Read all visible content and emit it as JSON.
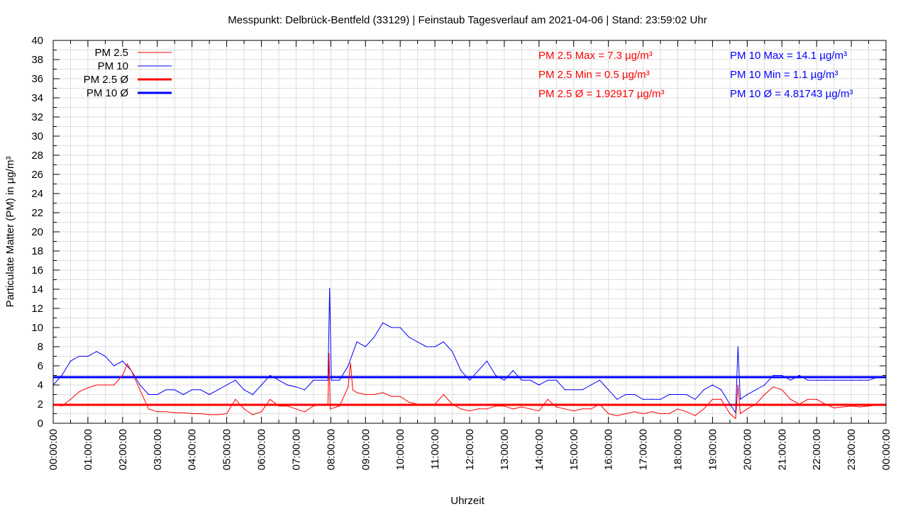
{
  "chart_data": {
    "type": "line",
    "title": "Messpunkt: Delbrück-Bentfeld (33129) | Feinstaub Tagesverlauf am 2021-04-06 | Stand: 23:59:02 Uhr",
    "xlabel": "Uhrzeit",
    "ylabel": "Particulate Matter (PM) in µg/m³",
    "ylim": [
      0,
      40
    ],
    "yticks": [
      "0",
      "2",
      "4",
      "6",
      "8",
      "10",
      "12",
      "14",
      "16",
      "18",
      "20",
      "22",
      "24",
      "26",
      "28",
      "30",
      "32",
      "34",
      "36",
      "38",
      "40"
    ],
    "xticks": [
      "00:00:00",
      "01:00:00",
      "02:00:00",
      "03:00:00",
      "04:00:00",
      "05:00:00",
      "06:00:00",
      "07:00:00",
      "08:00:00",
      "09:00:00",
      "10:00:00",
      "11:00:00",
      "12:00:00",
      "13:00:00",
      "14:00:00",
      "15:00:00",
      "16:00:00",
      "17:00:00",
      "18:00:00",
      "19:00:00",
      "20:00:00",
      "21:00:00",
      "22:00:00",
      "23:00:00",
      "00:00:00"
    ],
    "grid": true,
    "legend_position": "top-left",
    "legend": [
      "PM 2.5",
      "PM 10",
      "PM 2.5 Ø",
      "PM 10 Ø"
    ],
    "colors": {
      "pm25": "#ff0000",
      "pm10": "#0000ff"
    },
    "annotations": {
      "pm25": [
        "PM 2.5 Max = 7.3 µg/m³",
        "PM 2.5 Min = 0.5 µg/m³",
        "PM 2.5 Ø = 1.92917 µg/m³"
      ],
      "pm10": [
        "PM 10 Max = 14.1 µg/m³",
        "PM 10 Min = 1.1 µg/m³",
        "PM 10 Ø = 4.81743 µg/m³"
      ]
    },
    "series": [
      {
        "name": "PM 2.5",
        "points": [
          [
            "00:00",
            2.0
          ],
          [
            "00:15",
            1.8
          ],
          [
            "00:30",
            2.5
          ],
          [
            "00:45",
            3.3
          ],
          [
            "01:00",
            3.7
          ],
          [
            "01:15",
            4.0
          ],
          [
            "01:30",
            4.0
          ],
          [
            "01:45",
            4.0
          ],
          [
            "02:00",
            5.0
          ],
          [
            "02:08",
            6.2
          ],
          [
            "02:15",
            5.5
          ],
          [
            "02:30",
            3.5
          ],
          [
            "02:45",
            1.5
          ],
          [
            "03:00",
            1.2
          ],
          [
            "03:15",
            1.2
          ],
          [
            "03:30",
            1.1
          ],
          [
            "03:45",
            1.1
          ],
          [
            "04:00",
            1.0
          ],
          [
            "04:15",
            1.0
          ],
          [
            "04:30",
            0.9
          ],
          [
            "04:45",
            0.9
          ],
          [
            "05:00",
            1.0
          ],
          [
            "05:15",
            2.5
          ],
          [
            "05:30",
            1.5
          ],
          [
            "05:45",
            0.9
          ],
          [
            "06:00",
            1.2
          ],
          [
            "06:15",
            2.5
          ],
          [
            "06:30",
            1.8
          ],
          [
            "06:45",
            1.8
          ],
          [
            "07:00",
            1.5
          ],
          [
            "07:15",
            1.2
          ],
          [
            "07:30",
            1.8
          ],
          [
            "07:45",
            2.0
          ],
          [
            "07:55",
            2.0
          ],
          [
            "07:57",
            7.3
          ],
          [
            "07:59",
            1.5
          ],
          [
            "08:15",
            1.8
          ],
          [
            "08:30",
            3.8
          ],
          [
            "08:34",
            6.3
          ],
          [
            "08:38",
            3.5
          ],
          [
            "08:45",
            3.2
          ],
          [
            "09:00",
            3.0
          ],
          [
            "09:15",
            3.0
          ],
          [
            "09:30",
            3.2
          ],
          [
            "09:45",
            2.8
          ],
          [
            "10:00",
            2.8
          ],
          [
            "10:15",
            2.2
          ],
          [
            "10:30",
            2.0
          ],
          [
            "10:45",
            2.0
          ],
          [
            "11:00",
            2.0
          ],
          [
            "11:15",
            3.0
          ],
          [
            "11:30",
            2.0
          ],
          [
            "11:45",
            1.5
          ],
          [
            "12:00",
            1.3
          ],
          [
            "12:15",
            1.5
          ],
          [
            "12:30",
            1.5
          ],
          [
            "12:45",
            1.8
          ],
          [
            "13:00",
            1.8
          ],
          [
            "13:15",
            1.5
          ],
          [
            "13:30",
            1.7
          ],
          [
            "13:45",
            1.5
          ],
          [
            "14:00",
            1.3
          ],
          [
            "14:15",
            2.5
          ],
          [
            "14:30",
            1.7
          ],
          [
            "14:45",
            1.5
          ],
          [
            "15:00",
            1.3
          ],
          [
            "15:15",
            1.5
          ],
          [
            "15:30",
            1.5
          ],
          [
            "15:45",
            2.0
          ],
          [
            "16:00",
            1.0
          ],
          [
            "16:15",
            0.8
          ],
          [
            "16:30",
            1.0
          ],
          [
            "16:45",
            1.2
          ],
          [
            "17:00",
            1.0
          ],
          [
            "17:15",
            1.2
          ],
          [
            "17:30",
            1.0
          ],
          [
            "17:45",
            1.0
          ],
          [
            "18:00",
            1.5
          ],
          [
            "18:15",
            1.2
          ],
          [
            "18:30",
            0.8
          ],
          [
            "18:45",
            1.5
          ],
          [
            "19:00",
            2.5
          ],
          [
            "19:15",
            2.5
          ],
          [
            "19:30",
            1.0
          ],
          [
            "19:40",
            0.5
          ],
          [
            "19:44",
            4.0
          ],
          [
            "19:48",
            1.0
          ],
          [
            "20:00",
            1.5
          ],
          [
            "20:15",
            2.0
          ],
          [
            "20:30",
            3.0
          ],
          [
            "20:45",
            3.8
          ],
          [
            "21:00",
            3.5
          ],
          [
            "21:15",
            2.5
          ],
          [
            "21:30",
            2.0
          ],
          [
            "21:45",
            2.5
          ],
          [
            "22:00",
            2.5
          ],
          [
            "22:15",
            2.0
          ],
          [
            "22:30",
            1.6
          ],
          [
            "22:45",
            1.7
          ],
          [
            "23:00",
            1.8
          ],
          [
            "23:15",
            1.7
          ],
          [
            "23:30",
            1.8
          ],
          [
            "23:45",
            1.9
          ],
          [
            "24:00",
            2.0
          ]
        ]
      },
      {
        "name": "PM 10",
        "points": [
          [
            "00:00",
            4.0
          ],
          [
            "00:15",
            5.0
          ],
          [
            "00:30",
            6.5
          ],
          [
            "00:45",
            7.0
          ],
          [
            "01:00",
            7.0
          ],
          [
            "01:15",
            7.5
          ],
          [
            "01:30",
            7.0
          ],
          [
            "01:45",
            6.0
          ],
          [
            "02:00",
            6.5
          ],
          [
            "02:15",
            5.5
          ],
          [
            "02:30",
            4.0
          ],
          [
            "02:45",
            3.0
          ],
          [
            "03:00",
            3.0
          ],
          [
            "03:15",
            3.5
          ],
          [
            "03:30",
            3.5
          ],
          [
            "03:45",
            3.0
          ],
          [
            "04:00",
            3.5
          ],
          [
            "04:15",
            3.5
          ],
          [
            "04:30",
            3.0
          ],
          [
            "04:45",
            3.5
          ],
          [
            "05:00",
            4.0
          ],
          [
            "05:15",
            4.5
          ],
          [
            "05:30",
            3.5
          ],
          [
            "05:45",
            3.0
          ],
          [
            "06:00",
            4.0
          ],
          [
            "06:15",
            5.0
          ],
          [
            "06:30",
            4.5
          ],
          [
            "06:45",
            4.0
          ],
          [
            "07:00",
            3.8
          ],
          [
            "07:15",
            3.5
          ],
          [
            "07:30",
            4.5
          ],
          [
            "07:45",
            4.5
          ],
          [
            "07:55",
            4.5
          ],
          [
            "07:58",
            14.1
          ],
          [
            "08:01",
            4.5
          ],
          [
            "08:15",
            4.5
          ],
          [
            "08:30",
            6.0
          ],
          [
            "08:45",
            8.5
          ],
          [
            "09:00",
            8.0
          ],
          [
            "09:15",
            9.0
          ],
          [
            "09:30",
            10.5
          ],
          [
            "09:45",
            10.0
          ],
          [
            "10:00",
            10.0
          ],
          [
            "10:15",
            9.0
          ],
          [
            "10:30",
            8.5
          ],
          [
            "10:45",
            8.0
          ],
          [
            "11:00",
            8.0
          ],
          [
            "11:15",
            8.5
          ],
          [
            "11:30",
            7.5
          ],
          [
            "11:45",
            5.5
          ],
          [
            "12:00",
            4.5
          ],
          [
            "12:15",
            5.5
          ],
          [
            "12:30",
            6.5
          ],
          [
            "12:45",
            5.0
          ],
          [
            "13:00",
            4.5
          ],
          [
            "13:15",
            5.5
          ],
          [
            "13:30",
            4.5
          ],
          [
            "13:45",
            4.5
          ],
          [
            "14:00",
            4.0
          ],
          [
            "14:15",
            4.5
          ],
          [
            "14:30",
            4.5
          ],
          [
            "14:45",
            3.5
          ],
          [
            "15:00",
            3.5
          ],
          [
            "15:15",
            3.5
          ],
          [
            "15:30",
            4.0
          ],
          [
            "15:45",
            4.5
          ],
          [
            "16:00",
            3.5
          ],
          [
            "16:15",
            2.5
          ],
          [
            "16:30",
            3.0
          ],
          [
            "16:45",
            3.0
          ],
          [
            "17:00",
            2.5
          ],
          [
            "17:15",
            2.5
          ],
          [
            "17:30",
            2.5
          ],
          [
            "17:45",
            3.0
          ],
          [
            "18:00",
            3.0
          ],
          [
            "18:15",
            3.0
          ],
          [
            "18:30",
            2.5
          ],
          [
            "18:45",
            3.5
          ],
          [
            "19:00",
            4.0
          ],
          [
            "19:15",
            3.5
          ],
          [
            "19:30",
            2.0
          ],
          [
            "19:40",
            1.1
          ],
          [
            "19:44",
            8.0
          ],
          [
            "19:48",
            2.5
          ],
          [
            "20:00",
            3.0
          ],
          [
            "20:15",
            3.5
          ],
          [
            "20:30",
            4.0
          ],
          [
            "20:45",
            5.0
          ],
          [
            "21:00",
            5.0
          ],
          [
            "21:15",
            4.5
          ],
          [
            "21:30",
            5.0
          ],
          [
            "21:45",
            4.5
          ],
          [
            "22:00",
            4.5
          ],
          [
            "22:15",
            4.5
          ],
          [
            "22:30",
            4.5
          ],
          [
            "22:45",
            4.5
          ],
          [
            "23:00",
            4.5
          ],
          [
            "23:15",
            4.5
          ],
          [
            "23:30",
            4.5
          ],
          [
            "23:45",
            4.8
          ],
          [
            "24:00",
            4.8
          ]
        ]
      },
      {
        "name": "PM 2.5 Ø",
        "value": 1.92917
      },
      {
        "name": "PM 10 Ø",
        "value": 4.81743
      }
    ]
  }
}
